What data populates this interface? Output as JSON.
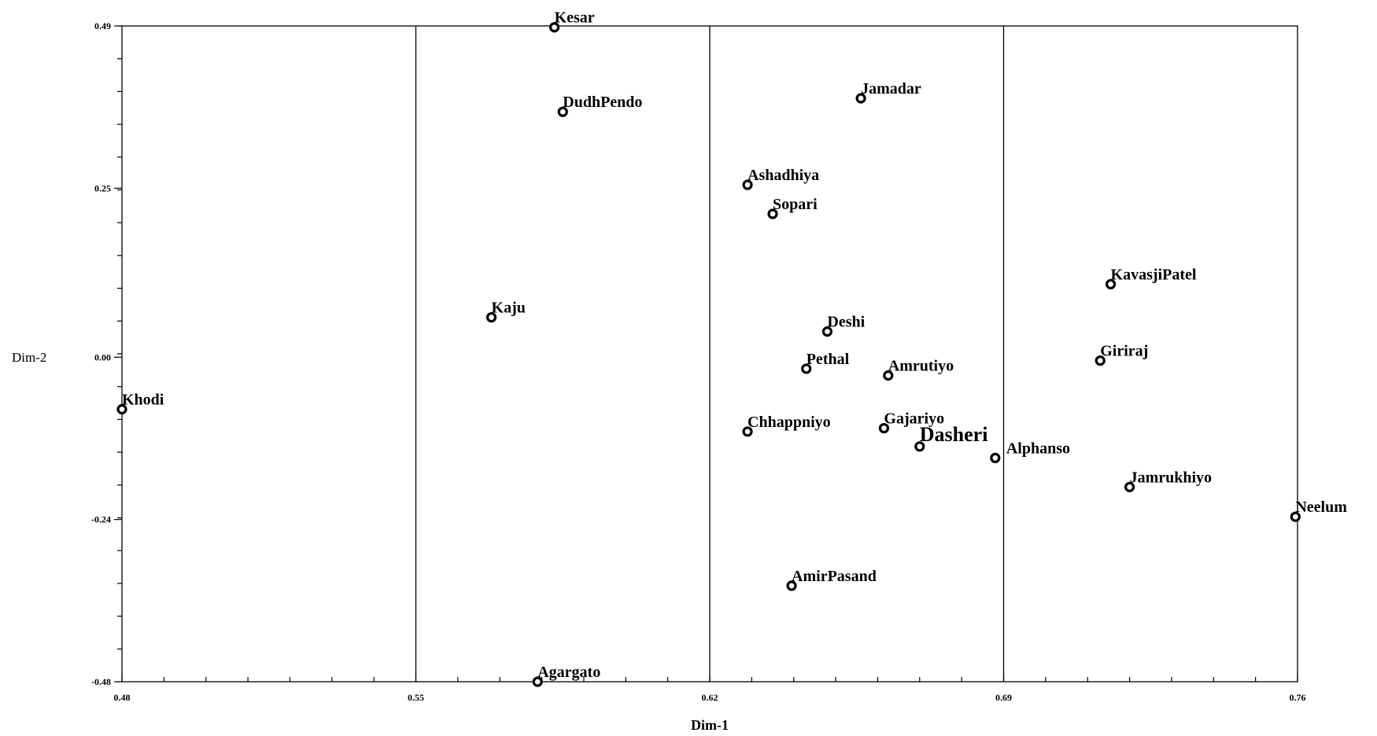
{
  "chart_data": {
    "type": "scatter",
    "title": "",
    "xlabel": "Dim-1",
    "ylabel": "Dim-2",
    "xlim": [
      0.48,
      0.76
    ],
    "ylim": [
      -0.48,
      0.49
    ],
    "xticks": [
      0.48,
      0.55,
      0.62,
      0.69,
      0.76
    ],
    "xtick_labels": [
      "0.48",
      "0.55",
      "0.62",
      "0.69",
      "0.76"
    ],
    "yticks": [
      -0.48,
      -0.24,
      0.0,
      0.25,
      0.49
    ],
    "ytick_labels": [
      "-0.48",
      "-0.24",
      "0.00",
      "0.25",
      "0.49"
    ],
    "vertical_gridlines": [
      0.55,
      0.62,
      0.69
    ],
    "points": [
      {
        "label": "Kesar",
        "x": 0.583,
        "y": 0.488
      },
      {
        "label": "DudhPendo",
        "x": 0.585,
        "y": 0.363
      },
      {
        "label": "Jamadar",
        "x": 0.656,
        "y": 0.383
      },
      {
        "label": "Ashadhiya",
        "x": 0.629,
        "y": 0.255
      },
      {
        "label": "Sopari",
        "x": 0.635,
        "y": 0.212
      },
      {
        "label": "KavasjiPatel",
        "x": 0.7155,
        "y": 0.108
      },
      {
        "label": "Kaju",
        "x": 0.568,
        "y": 0.059
      },
      {
        "label": "Deshi",
        "x": 0.648,
        "y": 0.038
      },
      {
        "label": "Giriraj",
        "x": 0.713,
        "y": -0.005
      },
      {
        "label": "Pethal",
        "x": 0.643,
        "y": -0.017
      },
      {
        "label": "Amrutiyo",
        "x": 0.6625,
        "y": -0.027
      },
      {
        "label": "Khodi",
        "x": 0.48,
        "y": -0.077
      },
      {
        "label": "Chhappniyo",
        "x": 0.629,
        "y": -0.11
      },
      {
        "label": "Gajariyo",
        "x": 0.6615,
        "y": -0.105
      },
      {
        "label": "Dasheri",
        "x": 0.67,
        "y": -0.132
      },
      {
        "label": "Alphanso",
        "x": 0.688,
        "y": -0.149
      },
      {
        "label": "Jamrukhiyo",
        "x": 0.72,
        "y": -0.192
      },
      {
        "label": "Neelum",
        "x": 0.7595,
        "y": -0.236
      },
      {
        "label": "AmirPasand",
        "x": 0.6395,
        "y": -0.338
      },
      {
        "label": "Agargato",
        "x": 0.579,
        "y": -0.48
      }
    ]
  }
}
